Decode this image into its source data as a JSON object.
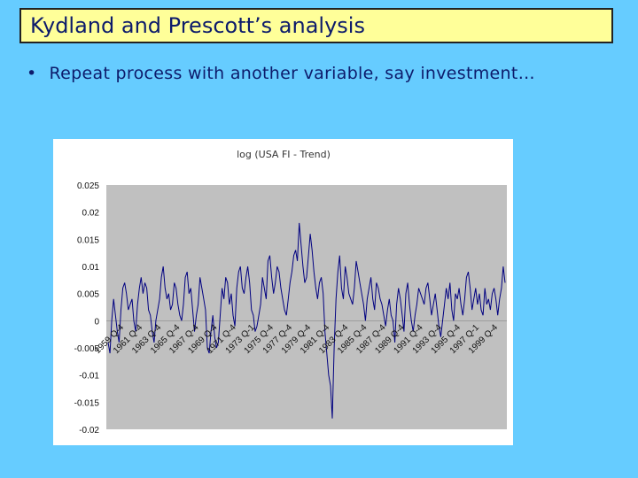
{
  "slide": {
    "title": "Kydland and Prescott’s analysis",
    "bullet": "Repeat process with another variable, say investment…",
    "bullet_symbol": "•"
  },
  "colors": {
    "background": "#66ccff",
    "title_box": "#ffff99",
    "text": "#0d1b6b",
    "plot_area": "#c0c0c0",
    "series_line": "#000080"
  },
  "chart_data": {
    "type": "line",
    "title": "log (USA FI - Trend)",
    "xlabel": "",
    "ylabel": "",
    "ylim": [
      -0.02,
      0.025
    ],
    "yticks": [
      "0.025",
      "0.02",
      "0.015",
      "0.01",
      "0.005",
      "0",
      "-0.005",
      "-0.01",
      "-0.015",
      "-0.02"
    ],
    "ytick_values": [
      0.025,
      0.02,
      0.015,
      0.01,
      0.005,
      0,
      -0.005,
      -0.01,
      -0.015,
      -0.02
    ],
    "xtick_labels": [
      "1959 Q-4",
      "1961 Q-4",
      "1963 Q-4",
      "1965 Q-4",
      "1967 Q-4",
      "1969 Q-4",
      "1971 Q-4",
      "1973 Q-1",
      "1975 Q-4",
      "1977 Q-4",
      "1979 Q-4",
      "1981 Q-4",
      "1983 Q-4",
      "1985 Q-4",
      "1987 Q-4",
      "1989 Q-4",
      "1991 Q-4",
      "1993 Q-4",
      "1995 Q-4",
      "1997 Q-1",
      "1999 Q-4"
    ],
    "grid": false,
    "legend": "none",
    "series": [
      {
        "x_start": "1959 Q-1",
        "x_end": "1999 Q-4",
        "values": [
          -0.004,
          -0.006,
          0.0,
          0.004,
          0.001,
          -0.002,
          -0.004,
          0.002,
          0.006,
          0.007,
          0.005,
          0.002,
          0.003,
          0.004,
          0.0,
          -0.002,
          0.003,
          0.006,
          0.008,
          0.005,
          0.007,
          0.006,
          0.002,
          0.001,
          -0.002,
          -0.004,
          0.0,
          0.002,
          0.004,
          0.008,
          0.01,
          0.006,
          0.004,
          0.005,
          0.002,
          0.003,
          0.007,
          0.006,
          0.003,
          0.001,
          0.0,
          0.003,
          0.008,
          0.009,
          0.005,
          0.006,
          0.002,
          -0.002,
          0.001,
          0.003,
          0.008,
          0.006,
          0.004,
          0.002,
          -0.005,
          -0.006,
          -0.002,
          0.001,
          -0.003,
          -0.005,
          -0.004,
          0.001,
          0.006,
          0.004,
          0.008,
          0.007,
          0.003,
          0.005,
          0.001,
          -0.001,
          0.006,
          0.009,
          0.01,
          0.006,
          0.005,
          0.008,
          0.01,
          0.007,
          0.002,
          0.001,
          -0.002,
          -0.001,
          0.001,
          0.003,
          0.008,
          0.006,
          0.004,
          0.011,
          0.012,
          0.008,
          0.005,
          0.007,
          0.01,
          0.009,
          0.006,
          0.004,
          0.002,
          0.001,
          0.004,
          0.007,
          0.009,
          0.012,
          0.013,
          0.011,
          0.018,
          0.014,
          0.01,
          0.007,
          0.008,
          0.012,
          0.016,
          0.013,
          0.009,
          0.006,
          0.004,
          0.007,
          0.008,
          0.005,
          -0.002,
          -0.006,
          -0.01,
          -0.012,
          -0.018,
          -0.005,
          0.004,
          0.009,
          0.012,
          0.006,
          0.004,
          0.01,
          0.008,
          0.005,
          0.004,
          0.003,
          0.006,
          0.011,
          0.009,
          0.007,
          0.005,
          0.003,
          0.0,
          0.004,
          0.006,
          0.008,
          0.004,
          0.002,
          0.007,
          0.006,
          0.004,
          0.003,
          0.001,
          -0.001,
          0.002,
          0.004,
          0.001,
          0.0,
          -0.004,
          0.003,
          0.006,
          0.004,
          0.001,
          -0.002,
          0.005,
          0.007,
          0.003,
          0.0,
          -0.002,
          0.001,
          0.003,
          0.006,
          0.005,
          0.004,
          0.003,
          0.006,
          0.007,
          0.004,
          0.001,
          0.003,
          0.005,
          0.002,
          -0.001,
          -0.003,
          0.0,
          0.003,
          0.006,
          0.004,
          0.007,
          0.002,
          0.0,
          0.005,
          0.004,
          0.006,
          0.003,
          0.001,
          0.004,
          0.008,
          0.009,
          0.006,
          0.002,
          0.004,
          0.006,
          0.003,
          0.005,
          0.002,
          0.001,
          0.006,
          0.003,
          0.004,
          0.002,
          0.005,
          0.006,
          0.004,
          0.001,
          0.004,
          0.006,
          0.01,
          0.007
        ]
      }
    ]
  }
}
